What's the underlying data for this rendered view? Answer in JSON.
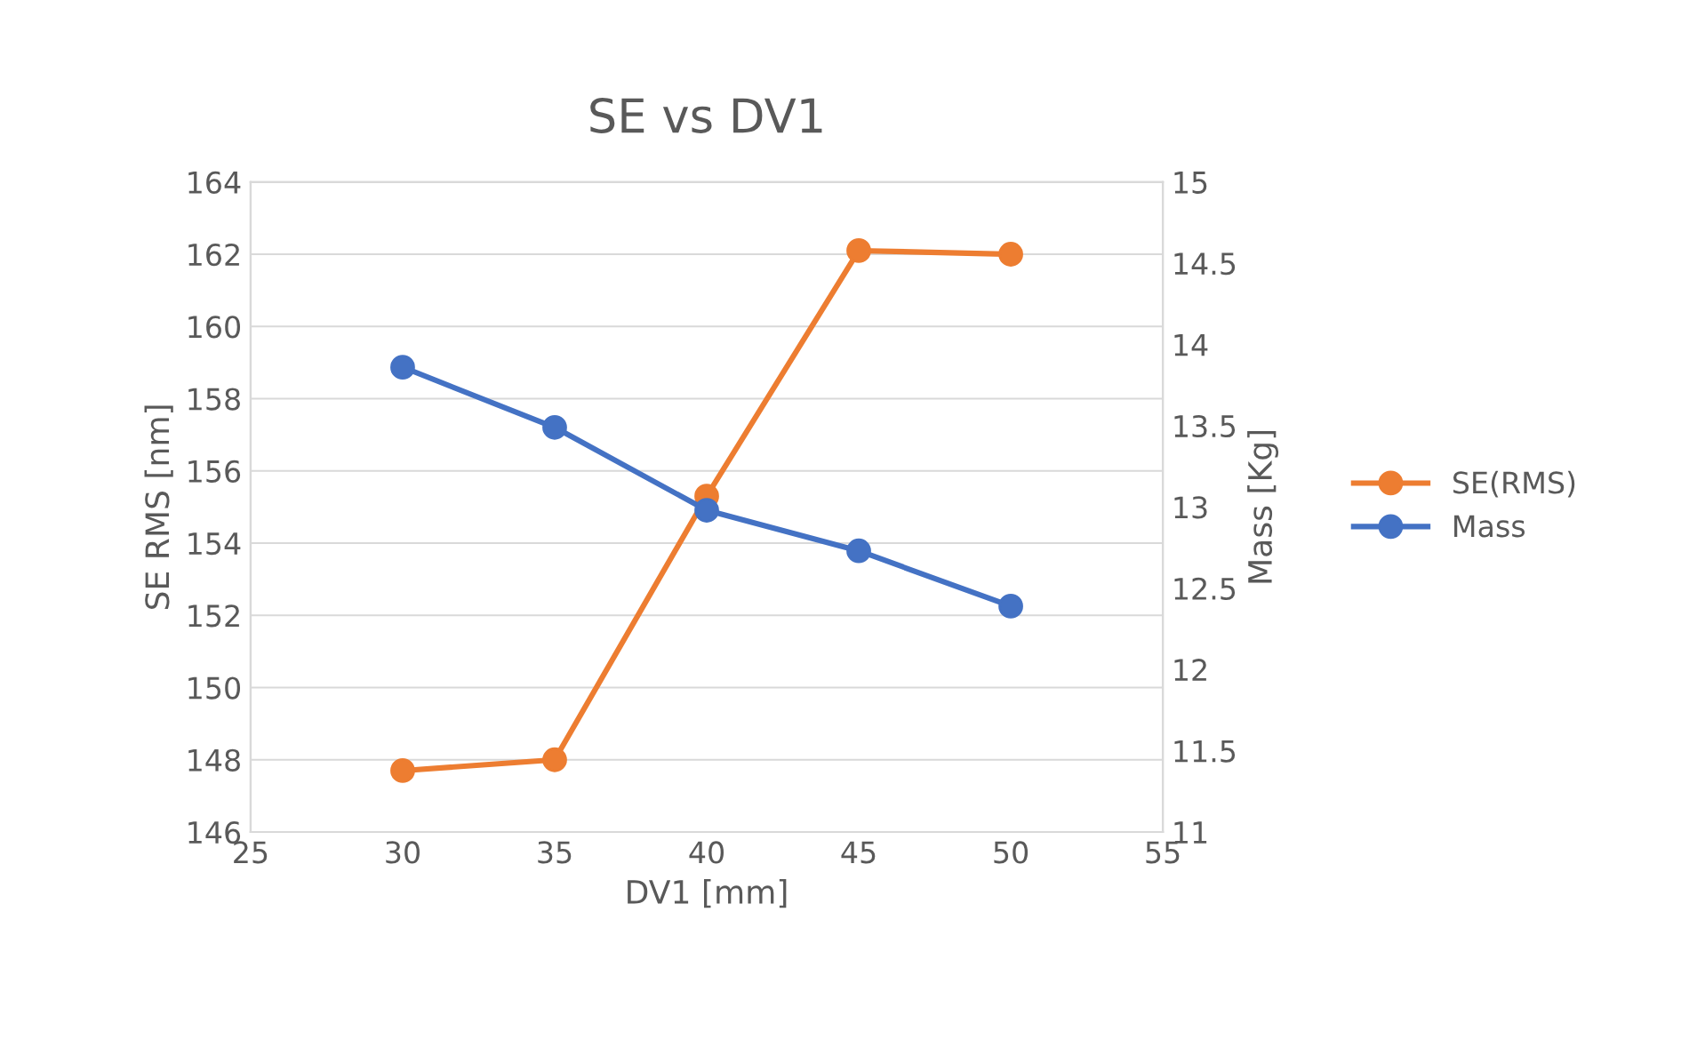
{
  "chart_data": {
    "type": "line",
    "title": "SE vs DV1",
    "xlabel": "DV1 [mm]",
    "ylabel": "SE RMS [nm]",
    "y2label": "Mass [Kg]",
    "x": [
      30,
      35,
      40,
      45,
      50
    ],
    "series": [
      {
        "name": "SE(RMS)",
        "color": "#ed7d31",
        "values": [
          147.7,
          148.0,
          155.3,
          162.1,
          162.0
        ]
      },
      {
        "name": "Mass",
        "color": "#4472c4",
        "axis": "y2",
        "values": [
          13.86,
          13.49,
          12.98,
          12.73,
          12.39
        ]
      }
    ],
    "xlim": [
      25,
      55
    ],
    "xticks": [
      25,
      30,
      35,
      40,
      45,
      50,
      55
    ],
    "ylim": [
      146,
      164
    ],
    "yticks": [
      146,
      148,
      150,
      152,
      154,
      156,
      158,
      160,
      162,
      164
    ],
    "y2lim": [
      11,
      15
    ],
    "y2ticks": [
      11,
      {
        "value": 11.5,
        "label": "11.5"
      },
      12,
      {
        "value": 12.5,
        "label": "12.5"
      },
      13,
      {
        "value": 13.5,
        "label": "13.5"
      },
      14,
      {
        "value": 14.5,
        "label": "14.5"
      },
      15
    ],
    "grid": "y",
    "legend": "right",
    "marker": "circle",
    "line_style": "solid"
  }
}
